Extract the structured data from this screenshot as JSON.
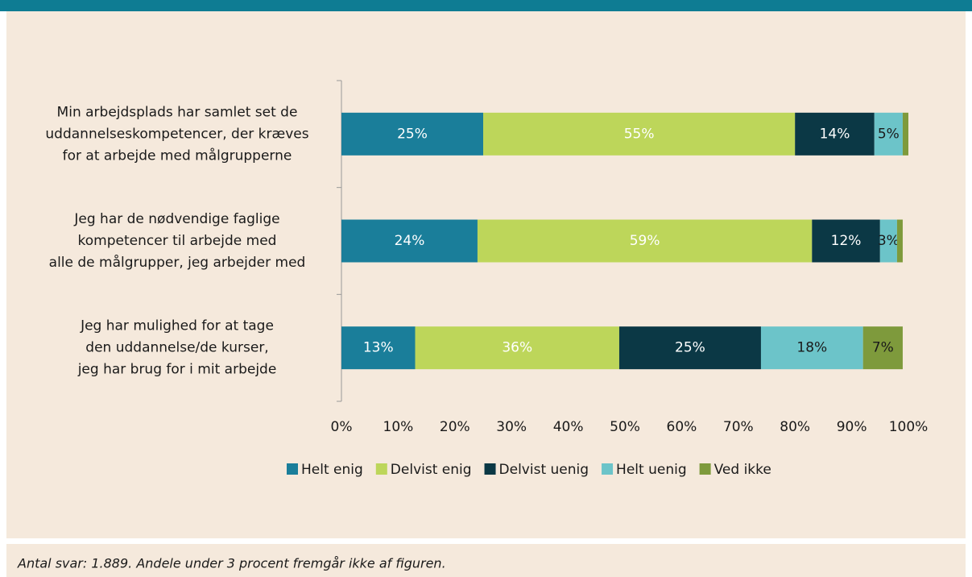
{
  "chart_data": {
    "type": "stacked-bar-horizontal",
    "categories": [
      "Min arbejdsplads har samlet set de\nuddannelseskompetencer, der kræves\nfor at arbejde med målgrupperne",
      "Jeg har de nødvendige faglige\nkompetencer til arbejde med\nalle de målgrupper, jeg arbejder med",
      "Jeg har mulighed for at tage\nden uddannelse/de kurser,\njeg har brug for i mit arbejde"
    ],
    "series": [
      {
        "name": "Helt enig",
        "color": "#1a7e9a",
        "label_color": "#ffffff",
        "values": [
          25,
          24,
          13
        ],
        "value_labels": [
          "25%",
          "24%",
          "13%"
        ]
      },
      {
        "name": "Delvist enig",
        "color": "#bdd65a",
        "label_color": "#ffffff",
        "values": [
          55,
          59,
          36
        ],
        "value_labels": [
          "55%",
          "59%",
          "36%"
        ]
      },
      {
        "name": "Delvist uenig",
        "color": "#0b3845",
        "label_color": "#ffffff",
        "values": [
          14,
          12,
          25
        ],
        "value_labels": [
          "14%",
          "12%",
          "25%"
        ]
      },
      {
        "name": "Helt uenig",
        "color": "#6cc4c9",
        "label_color": "#1a1a1a",
        "values": [
          5,
          3,
          18
        ],
        "value_labels": [
          "5%",
          "3%",
          "18%"
        ]
      },
      {
        "name": "Ved ikke",
        "color": "#7e9a3c",
        "label_color": "#1a1a1a",
        "values": [
          1,
          1,
          7
        ],
        "value_labels": [
          null,
          null,
          "7%"
        ]
      }
    ],
    "xlim": [
      0,
      100
    ],
    "xticks": [
      {
        "value": 0,
        "label": "0%"
      },
      {
        "value": 10,
        "label": "10%"
      },
      {
        "value": 20,
        "label": "20%"
      },
      {
        "value": 30,
        "label": "30%"
      },
      {
        "value": 40,
        "label": "40%"
      },
      {
        "value": 50,
        "label": "50%"
      },
      {
        "value": 60,
        "label": "60%"
      },
      {
        "value": 70,
        "label": "70%"
      },
      {
        "value": 80,
        "label": "80%"
      },
      {
        "value": 90,
        "label": "90%"
      },
      {
        "value": 100,
        "label": "100%"
      }
    ],
    "legend": "bottom",
    "footnote": "Antal svar: 1.889.  Andele under 3 procent fremgår ikke af figuren."
  }
}
